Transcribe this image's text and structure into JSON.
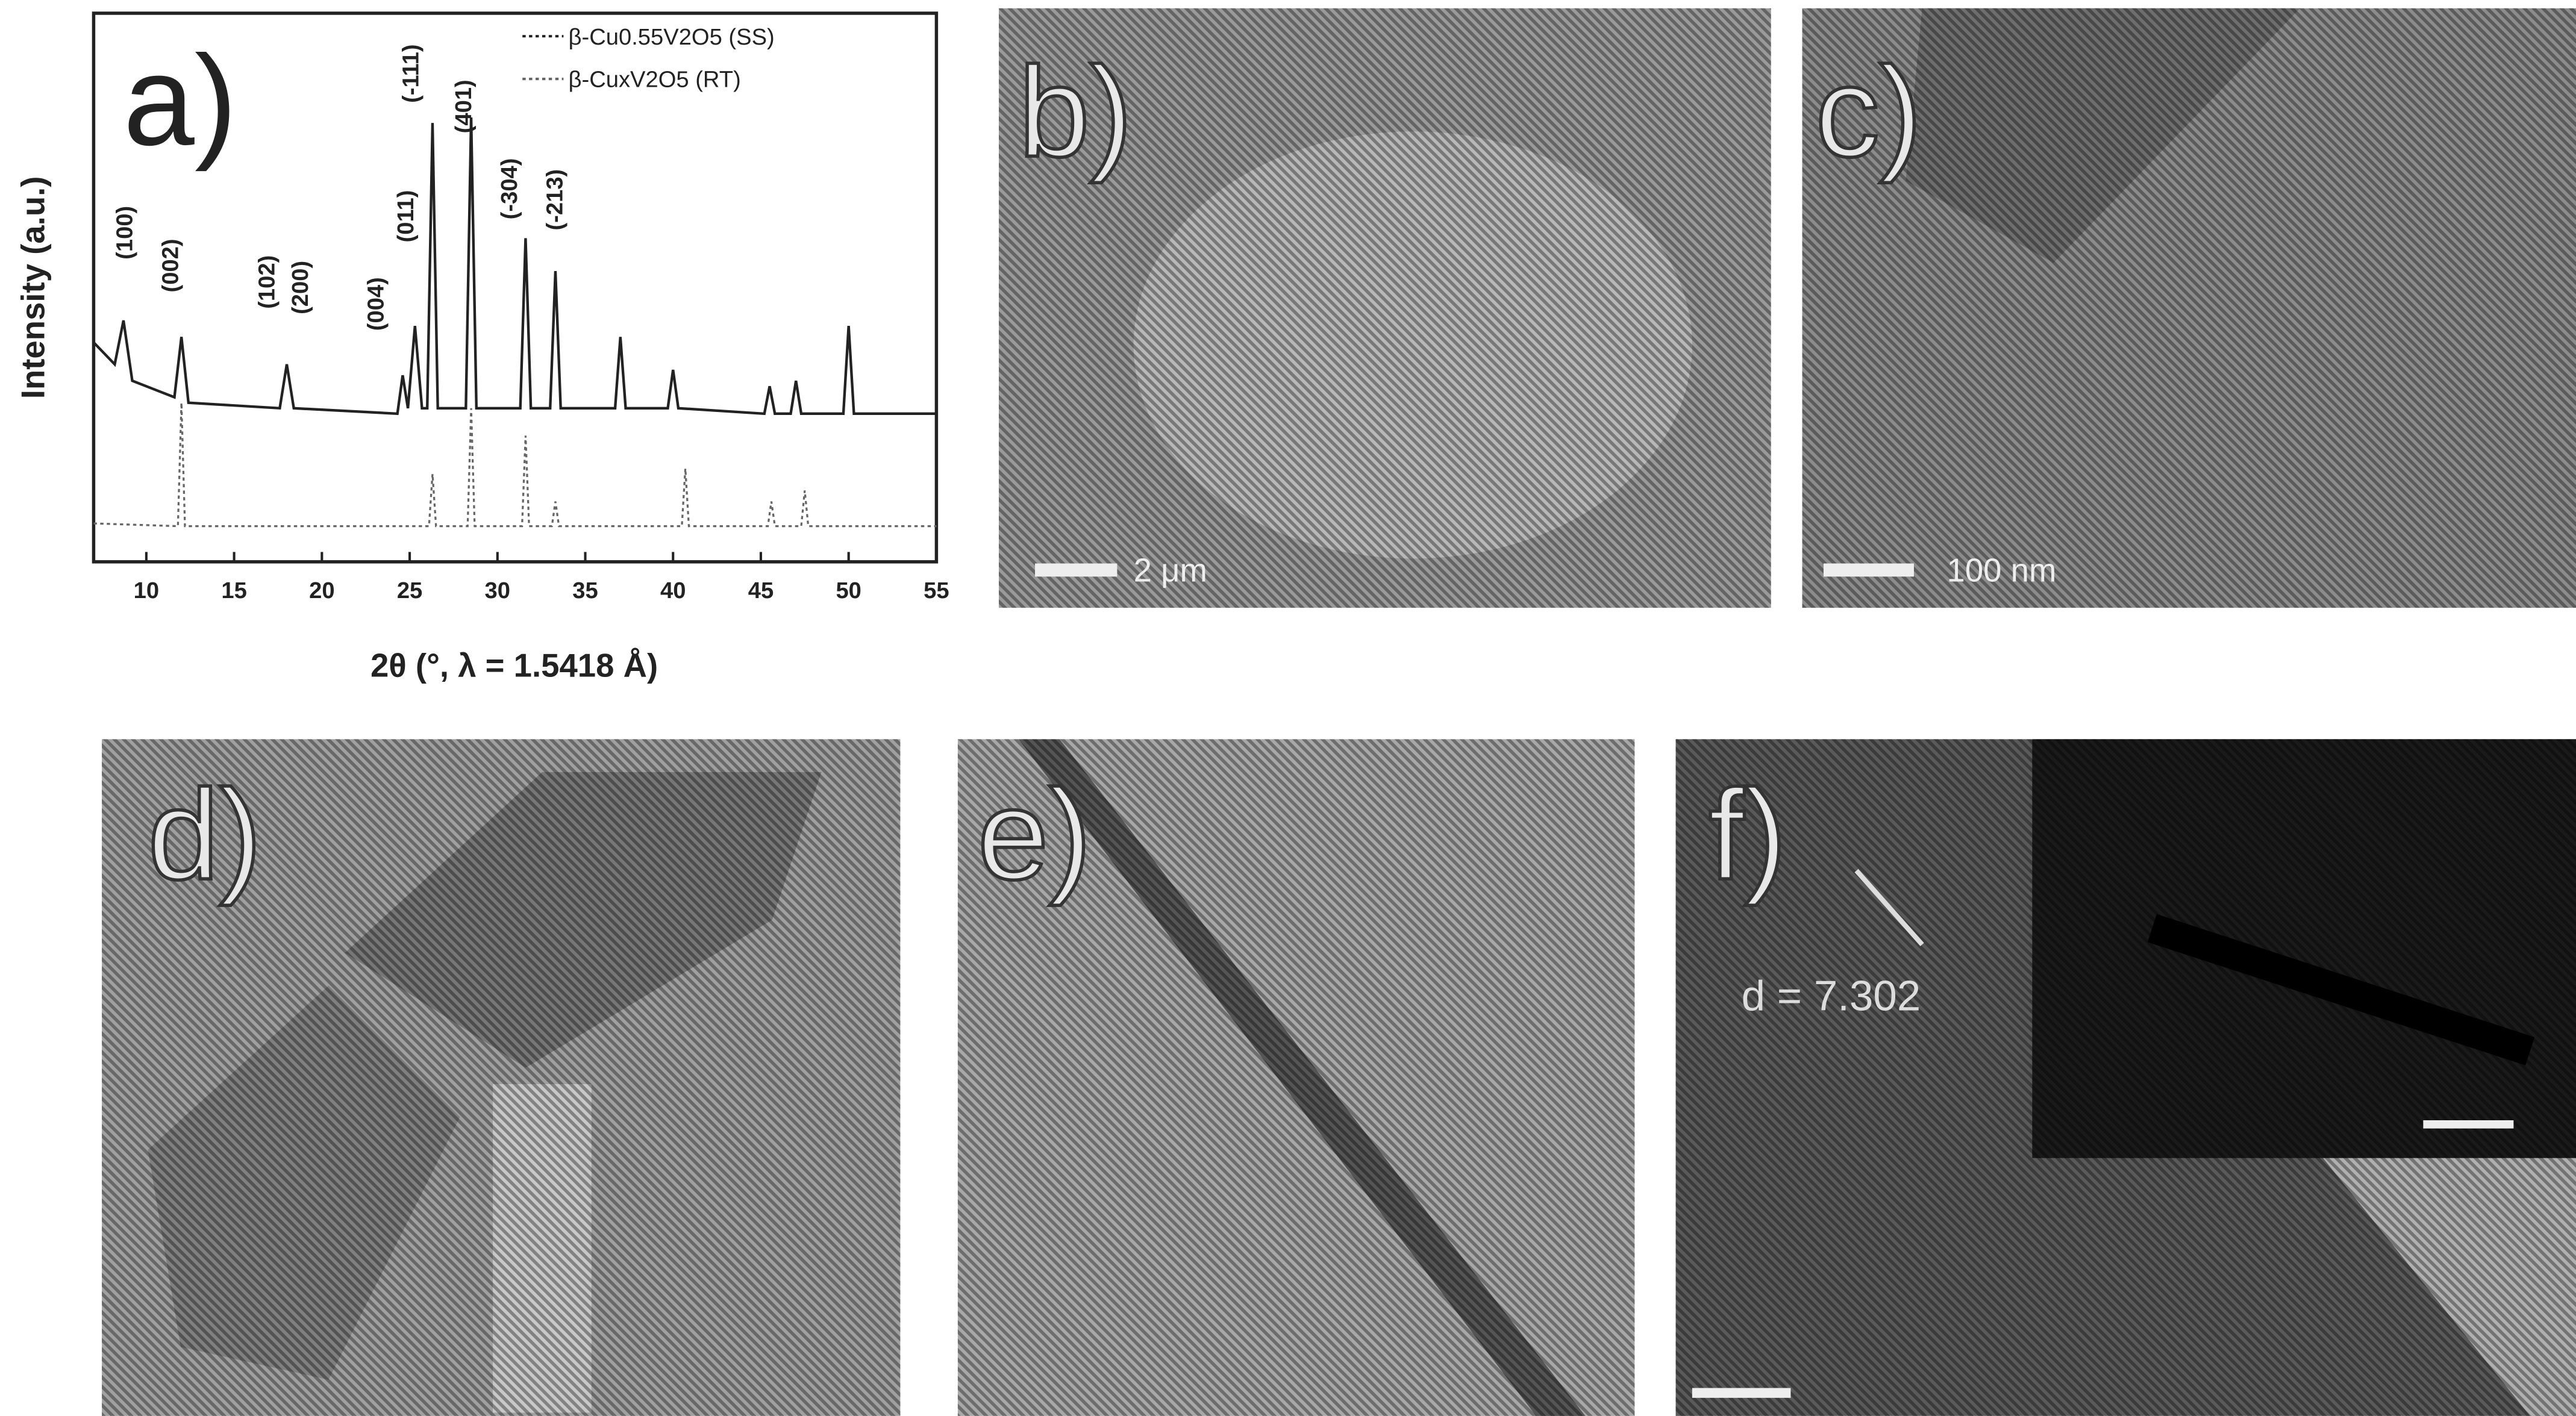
{
  "chart_data": {
    "type": "line",
    "label": "a)",
    "xlabel": "2θ (°, λ = 1.5418 Å)",
    "ylabel": "Intensity (a.u.)",
    "xlim": [
      7,
      55
    ],
    "xticks": [
      10,
      15,
      20,
      25,
      30,
      35,
      40,
      45,
      50,
      55
    ],
    "ylim": [
      0,
      100
    ],
    "series": [
      {
        "name": "β-Cu0.55V2O5 (SS)",
        "color": "#222222",
        "x": [
          7,
          8.2,
          8.7,
          9.2,
          11.6,
          12,
          12.4,
          17.6,
          18,
          18.4,
          24.3,
          24.6,
          24.9,
          25.3,
          25.7,
          26,
          26.3,
          26.6,
          28.2,
          28.5,
          28.8,
          31.3,
          31.6,
          31.9,
          33,
          33.3,
          33.6,
          36.7,
          37,
          37.3,
          39.7,
          40,
          40.3,
          45.2,
          45.5,
          45.8,
          46.7,
          47,
          47.3,
          49.7,
          50,
          50.3,
          55
        ],
        "values": [
          40,
          36,
          44,
          33,
          30,
          41,
          29,
          28,
          36,
          28,
          27,
          34,
          28,
          43,
          28,
          28,
          80,
          28,
          28,
          81,
          28,
          28,
          59,
          28,
          28,
          53,
          28,
          28,
          41,
          28,
          28,
          35,
          28,
          27,
          32,
          27,
          27,
          33,
          27,
          27,
          43,
          27,
          27
        ]
      },
      {
        "name": "β-CuxV2O5 (RT)",
        "color": "#666666",
        "x": [
          7,
          11.8,
          12,
          12.2,
          26.1,
          26.3,
          26.5,
          28.3,
          28.5,
          28.7,
          31.4,
          31.6,
          31.8,
          33.1,
          33.3,
          33.5,
          40.5,
          40.7,
          40.9,
          45.4,
          45.6,
          45.8,
          47.3,
          47.5,
          47.7,
          55
        ],
        "values": [
          7,
          6.5,
          29,
          6.5,
          6.5,
          16,
          6.5,
          6.5,
          28,
          6.5,
          6.5,
          23,
          6.5,
          6.5,
          11,
          6.5,
          6.5,
          17,
          6.5,
          6.5,
          11,
          6.5,
          6.5,
          13,
          6.5,
          6.5
        ]
      }
    ],
    "annotations": [
      {
        "text": "(100)",
        "x": 9.2,
        "y": 60
      },
      {
        "text": "(002)",
        "x": 11.8,
        "y": 54
      },
      {
        "text": "(102)",
        "x": 17.3,
        "y": 51
      },
      {
        "text": "(200)",
        "x": 19.2,
        "y": 50
      },
      {
        "text": "(004)",
        "x": 23.5,
        "y": 47
      },
      {
        "text": "(011)",
        "x": 25.2,
        "y": 63
      },
      {
        "text": "(-111)",
        "x": 25.5,
        "y": 89
      },
      {
        "text": "(401)",
        "x": 28.5,
        "y": 83
      },
      {
        "text": "(-304)",
        "x": 31.1,
        "y": 68
      },
      {
        "text": "(-213)",
        "x": 33.7,
        "y": 66
      }
    ]
  },
  "panels": [
    {
      "label": "b)",
      "scale_bar": "2 μm"
    },
    {
      "label": "c)",
      "scale_bar": "100 nm"
    },
    {
      "label": "d)"
    },
    {
      "label": "e)"
    },
    {
      "label": "f)",
      "annotation": "d = 7.302"
    }
  ]
}
